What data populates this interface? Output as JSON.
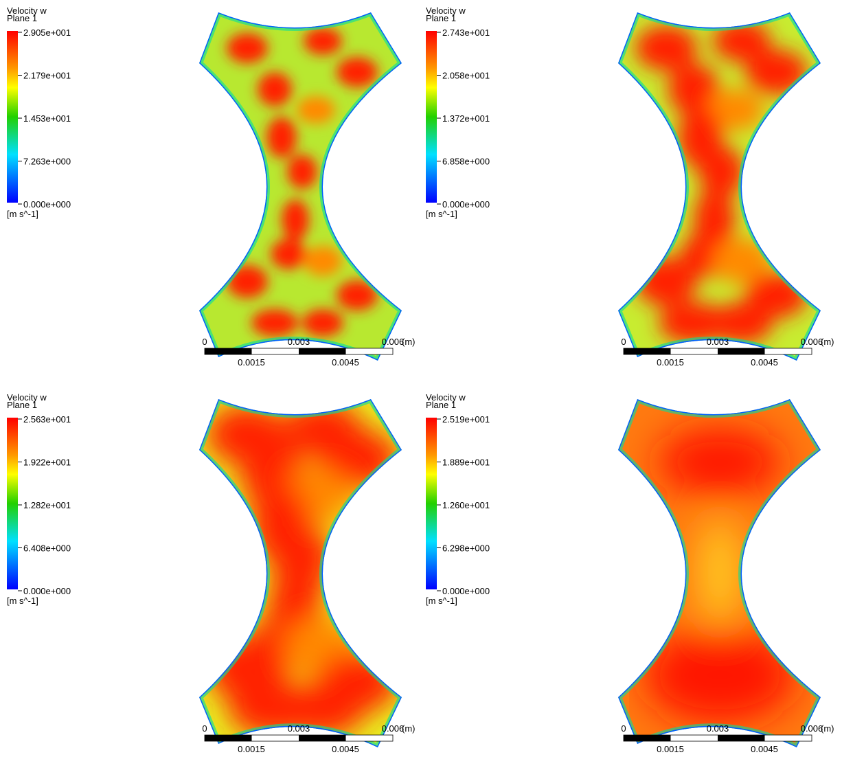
{
  "panels": [
    {
      "legend": {
        "title": "Velocity w",
        "subtitle": "Plane 1",
        "ticks": [
          "2.905e+001",
          "2.179e+001",
          "1.453e+001",
          "7.263e+000",
          "0.000e+000"
        ],
        "unit": "[m s^-1]"
      },
      "scale": {
        "top": [
          "0",
          "0.003",
          "0.006"
        ],
        "unit": "(m)",
        "bottom": [
          "0.0015",
          "0.0045"
        ]
      }
    },
    {
      "legend": {
        "title": "Velocity w",
        "subtitle": "Plane 1",
        "ticks": [
          "2.743e+001",
          "2.058e+001",
          "1.372e+001",
          "6.858e+000",
          "0.000e+000"
        ],
        "unit": "[m s^-1]"
      },
      "scale": {
        "top": [
          "0",
          "0.003",
          "0.006"
        ],
        "unit": "(m)",
        "bottom": [
          "0.0015",
          "0.0045"
        ]
      }
    },
    {
      "legend": {
        "title": "Velocity w",
        "subtitle": "Plane 1",
        "ticks": [
          "2.563e+001",
          "1.922e+001",
          "1.282e+001",
          "6.408e+000",
          "0.000e+000"
        ],
        "unit": "[m s^-1]"
      },
      "scale": {
        "top": [
          "0",
          "0.003",
          "0.006"
        ],
        "unit": "(m)",
        "bottom": [
          "0.0015",
          "0.0045"
        ]
      }
    },
    {
      "legend": {
        "title": "Velocity w",
        "subtitle": "Plane 1",
        "ticks": [
          "2.519e+001",
          "1.889e+001",
          "1.260e+001",
          "6.298e+000",
          "0.000e+000"
        ],
        "unit": "[m s^-1]"
      },
      "scale": {
        "top": [
          "0",
          "0.003",
          "0.006"
        ],
        "unit": "(m)",
        "bottom": [
          "0.0015",
          "0.0045"
        ]
      }
    }
  ]
}
